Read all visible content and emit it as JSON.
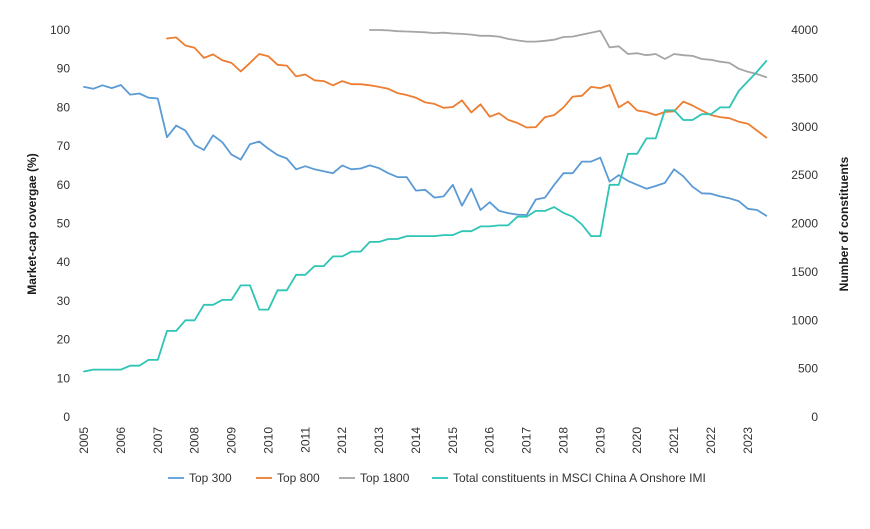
{
  "chart_data": {
    "type": "line",
    "title": "",
    "left_axis": {
      "label": "Market-cap covergae  (%)",
      "ylim": [
        0,
        100
      ],
      "ticks": [
        0,
        10,
        20,
        30,
        40,
        50,
        60,
        70,
        80,
        90,
        100
      ]
    },
    "right_axis": {
      "label": "Number of constituents",
      "ylim": [
        0,
        4000
      ],
      "ticks": [
        0,
        500,
        1000,
        1500,
        2000,
        2500,
        3000,
        3500,
        4000
      ]
    },
    "x_axis": {
      "xlim": [
        2005,
        2023.6
      ],
      "ticks": [
        2005,
        2006,
        2007,
        2008,
        2009,
        2010,
        2011,
        2012,
        2013,
        2014,
        2015,
        2016,
        2017,
        2018,
        2019,
        2020,
        2021,
        2022,
        2023
      ]
    },
    "legend_position": "bottom",
    "series": [
      {
        "name": "Top 300",
        "color": "#5b9bd5",
        "axis": "left",
        "x": [
          2005.0,
          2005.25,
          2005.5,
          2005.75,
          2006.0,
          2006.25,
          2006.5,
          2006.75,
          2007.0,
          2007.25,
          2007.5,
          2007.75,
          2008.0,
          2008.25,
          2008.5,
          2008.75,
          2009.0,
          2009.25,
          2009.5,
          2009.75,
          2010.0,
          2010.25,
          2010.5,
          2010.75,
          2011.0,
          2011.25,
          2011.5,
          2011.75,
          2012.0,
          2012.25,
          2012.5,
          2012.75,
          2013.0,
          2013.25,
          2013.5,
          2013.75,
          2014.0,
          2014.25,
          2014.5,
          2014.75,
          2015.0,
          2015.25,
          2015.5,
          2015.75,
          2016.0,
          2016.25,
          2016.5,
          2016.75,
          2017.0,
          2017.25,
          2017.5,
          2017.75,
          2018.0,
          2018.25,
          2018.5,
          2018.75,
          2019.0,
          2019.25,
          2019.5,
          2019.75,
          2020.0,
          2020.25,
          2020.5,
          2020.75,
          2021.0,
          2021.25,
          2021.5,
          2021.75,
          2022.0,
          2022.25,
          2022.5,
          2022.75,
          2023.0,
          2023.25,
          2023.5
        ],
        "values": [
          85.3,
          84.8,
          85.7,
          85.0,
          85.8,
          83.3,
          83.6,
          82.5,
          82.3,
          72.3,
          75.3,
          74.0,
          70.3,
          69.0,
          72.8,
          71.0,
          67.8,
          66.5,
          70.5,
          71.2,
          69.3,
          67.7,
          66.8,
          64.0,
          64.8,
          64.0,
          63.5,
          63.0,
          65.0,
          64.0,
          64.2,
          65.0,
          64.3,
          63.0,
          62.0,
          62.0,
          58.5,
          58.7,
          56.7,
          57.0,
          60.0,
          54.6,
          59.0,
          53.5,
          55.5,
          53.3,
          52.7,
          52.3,
          52.2,
          56.2,
          56.7,
          60.0,
          63.0,
          63.0,
          66.0,
          66.0,
          67.0,
          60.8,
          62.5,
          61.0,
          60.0,
          59.0,
          59.7,
          60.5,
          64.0,
          62.2,
          59.5,
          57.8,
          57.7,
          57.0,
          56.5,
          55.8,
          53.8,
          53.5,
          52.0
        ]
      },
      {
        "name": "Top 800",
        "color": "#ed7d31",
        "axis": "left",
        "x": [
          2007.25,
          2007.5,
          2007.75,
          2008.0,
          2008.25,
          2008.5,
          2008.75,
          2009.0,
          2009.25,
          2009.5,
          2009.75,
          2010.0,
          2010.25,
          2010.5,
          2010.75,
          2011.0,
          2011.25,
          2011.5,
          2011.75,
          2012.0,
          2012.25,
          2012.5,
          2012.75,
          2013.0,
          2013.25,
          2013.5,
          2013.75,
          2014.0,
          2014.25,
          2014.5,
          2014.75,
          2015.0,
          2015.25,
          2015.5,
          2015.75,
          2016.0,
          2016.25,
          2016.5,
          2016.75,
          2017.0,
          2017.25,
          2017.5,
          2017.75,
          2018.0,
          2018.25,
          2018.5,
          2018.75,
          2019.0,
          2019.25,
          2019.5,
          2019.75,
          2020.0,
          2020.25,
          2020.5,
          2020.75,
          2021.0,
          2021.25,
          2021.5,
          2021.75,
          2022.0,
          2022.25,
          2022.5,
          2022.75,
          2023.0,
          2023.25,
          2023.5
        ],
        "values": [
          97.8,
          98.1,
          96.0,
          95.4,
          92.8,
          93.7,
          92.2,
          91.5,
          89.3,
          91.5,
          93.8,
          93.2,
          91.0,
          90.8,
          88.0,
          88.5,
          87.0,
          86.8,
          85.7,
          86.8,
          86.0,
          86.0,
          85.7,
          85.3,
          84.8,
          83.7,
          83.2,
          82.5,
          81.3,
          80.9,
          79.9,
          80.1,
          81.8,
          78.7,
          80.8,
          77.6,
          78.5,
          76.8,
          76.0,
          74.8,
          74.9,
          77.5,
          78.0,
          80.0,
          82.8,
          83.0,
          85.3,
          85.0,
          85.8,
          80.0,
          81.5,
          79.2,
          78.8,
          78.0,
          78.8,
          79.0,
          81.5,
          80.5,
          79.2,
          78.0,
          77.5,
          77.2,
          76.3,
          75.8,
          74.0,
          72.2
        ]
      },
      {
        "name": "Top 1800",
        "color": "#a5a5a5",
        "axis": "left",
        "x": [
          2012.75,
          2013.0,
          2013.25,
          2013.5,
          2013.75,
          2014.0,
          2014.25,
          2014.5,
          2014.75,
          2015.0,
          2015.25,
          2015.5,
          2015.75,
          2016.0,
          2016.25,
          2016.5,
          2016.75,
          2017.0,
          2017.25,
          2017.5,
          2017.75,
          2018.0,
          2018.25,
          2018.5,
          2018.75,
          2019.0,
          2019.25,
          2019.5,
          2019.75,
          2020.0,
          2020.25,
          2020.5,
          2020.75,
          2021.0,
          2021.25,
          2021.5,
          2021.75,
          2022.0,
          2022.25,
          2022.5,
          2022.75,
          2023.0,
          2023.25,
          2023.5
        ],
        "values": [
          100,
          100,
          99.9,
          99.7,
          99.6,
          99.5,
          99.4,
          99.2,
          99.3,
          99.1,
          99.0,
          98.8,
          98.5,
          98.5,
          98.3,
          97.7,
          97.3,
          97.0,
          97.0,
          97.2,
          97.5,
          98.2,
          98.3,
          98.8,
          99.3,
          99.8,
          95.5,
          95.8,
          93.8,
          94.0,
          93.5,
          93.8,
          92.5,
          93.8,
          93.5,
          93.3,
          92.5,
          92.3,
          91.8,
          91.5,
          90.0,
          89.2,
          88.6,
          87.8
        ]
      },
      {
        "name": "Total constituents in MSCI China A Onshore IMI",
        "color": "#2ec4b6",
        "axis": "right",
        "x": [
          2005.0,
          2005.25,
          2005.5,
          2005.75,
          2006.0,
          2006.25,
          2006.5,
          2006.75,
          2007.0,
          2007.25,
          2007.5,
          2007.75,
          2008.0,
          2008.25,
          2008.5,
          2008.75,
          2009.0,
          2009.25,
          2009.5,
          2009.75,
          2010.0,
          2010.25,
          2010.5,
          2010.75,
          2011.0,
          2011.25,
          2011.5,
          2011.75,
          2012.0,
          2012.25,
          2012.5,
          2012.75,
          2013.0,
          2013.25,
          2013.5,
          2013.75,
          2014.0,
          2014.25,
          2014.5,
          2014.75,
          2015.0,
          2015.25,
          2015.5,
          2015.75,
          2016.0,
          2016.25,
          2016.5,
          2016.75,
          2017.0,
          2017.25,
          2017.5,
          2017.75,
          2018.0,
          2018.25,
          2018.5,
          2018.75,
          2019.0,
          2019.25,
          2019.5,
          2019.75,
          2020.0,
          2020.25,
          2020.5,
          2020.75,
          2021.0,
          2021.25,
          2021.5,
          2021.75,
          2022.0,
          2022.25,
          2022.5,
          2022.75,
          2023.0,
          2023.25,
          2023.5
        ],
        "values": [
          470,
          490,
          490,
          490,
          490,
          530,
          530,
          590,
          590,
          890,
          890,
          1000,
          1000,
          1160,
          1160,
          1210,
          1210,
          1360,
          1360,
          1110,
          1110,
          1310,
          1310,
          1470,
          1470,
          1560,
          1560,
          1660,
          1660,
          1710,
          1710,
          1810,
          1810,
          1840,
          1840,
          1870,
          1870,
          1870,
          1870,
          1880,
          1880,
          1920,
          1920,
          1970,
          1970,
          1980,
          1980,
          2070,
          2070,
          2130,
          2130,
          2170,
          2110,
          2070,
          1990,
          1870,
          1870,
          2400,
          2400,
          2720,
          2720,
          2880,
          2880,
          3170,
          3170,
          3070,
          3070,
          3130,
          3130,
          3200,
          3200,
          3370,
          3470,
          3570,
          3680
        ]
      }
    ]
  }
}
